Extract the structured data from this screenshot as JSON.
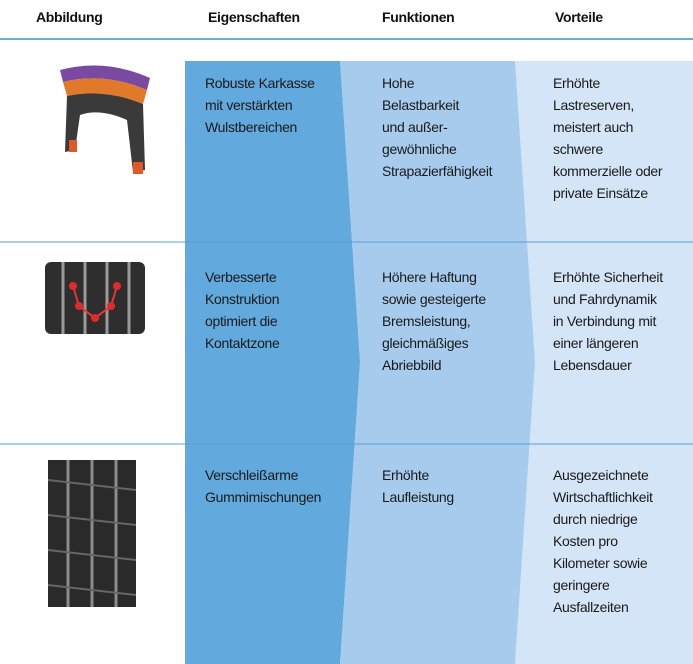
{
  "header": [
    "Abbildung",
    "Eigenschaften",
    "Funktionen",
    "Vorteile"
  ],
  "rows": [
    [
      [
        "Robuste Karkasse",
        "mit verstärkten",
        "Wulstbereichen"
      ],
      [
        "Hohe",
        "Belastbarkeit",
        "und außer-",
        "gewöhnliche",
        "Strapazierfähigkeit"
      ],
      [
        "Erhöhte",
        "Lastreserven,",
        "meistert auch",
        "schwere",
        "kommerzielle oder",
        "private Einsätze"
      ]
    ],
    [
      [
        "Verbesserte",
        "Konstruktion",
        "optimiert die",
        "Kontaktzone"
      ],
      [
        "Höhere Haftung",
        "sowie gesteigerte",
        "Bremsleistung,",
        "gleichmäßiges",
        "Abriebbild"
      ],
      [
        "Erhöhte Sicherheit",
        "und Fahrdynamik",
        "in Verbindung mit",
        "einer längeren",
        "Lebensdauer"
      ]
    ],
    [
      [
        "Verschleißarme",
        "Gummimischungen"
      ],
      [
        "Erhöhte",
        "Laufleistung"
      ],
      [
        "Ausgezeichnete",
        "Wirtschaftlichkeit",
        "durch niedrige",
        "Kosten pro",
        "Kilometer sowie",
        "geringere",
        "Ausfallzeiten"
      ]
    ]
  ]
}
